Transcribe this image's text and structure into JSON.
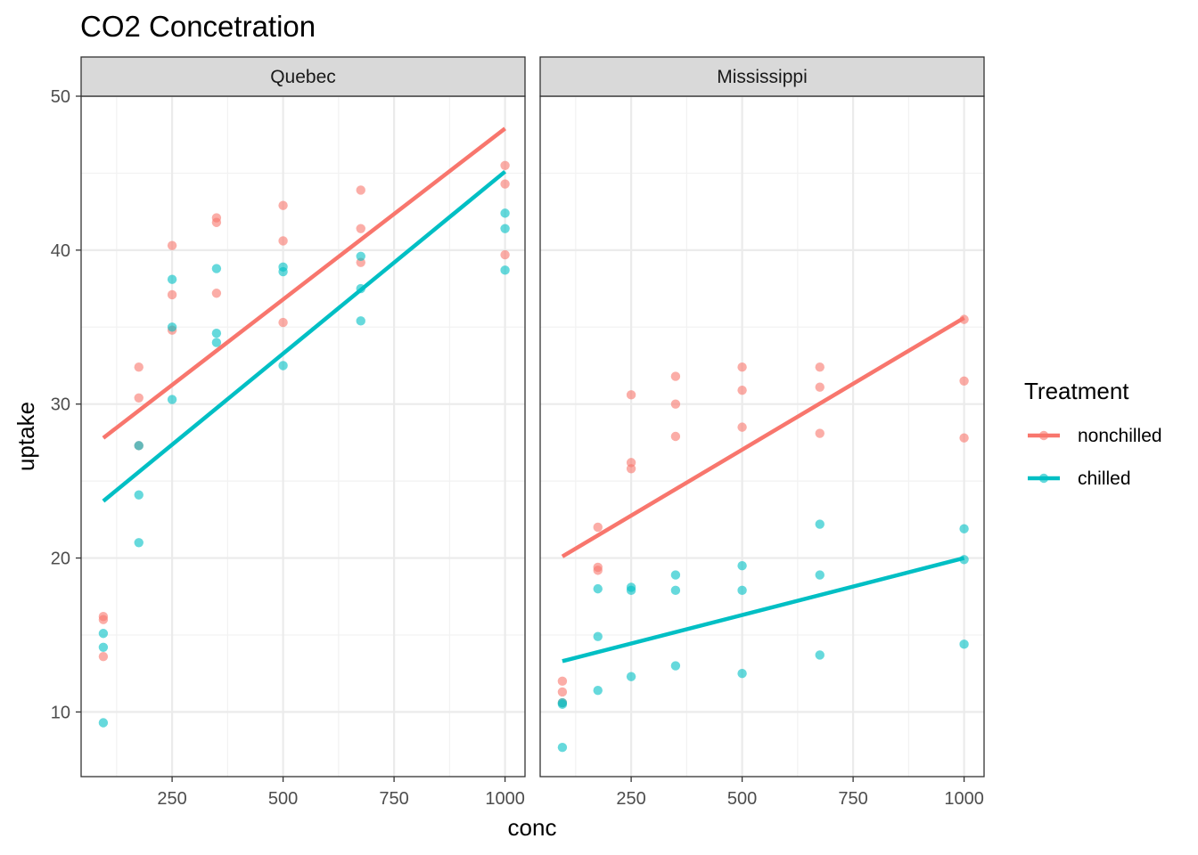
{
  "chart_data": {
    "type": "scatter",
    "title": "CO2 Concetration",
    "xlabel": "conc",
    "ylabel": "uptake",
    "xlim": [
      45,
      1045
    ],
    "ylim": [
      5.8,
      50
    ],
    "x_ticks": [
      250,
      500,
      750,
      1000
    ],
    "y_ticks": [
      10,
      20,
      30,
      40,
      50
    ],
    "grid": true,
    "legend": {
      "title": "Treatment",
      "position": "right",
      "entries": [
        {
          "label": "nonchilled",
          "color": "#F8766D"
        },
        {
          "label": "chilled",
          "color": "#00BFC4"
        }
      ]
    },
    "series_colors": {
      "nonchilled": "#F8766D",
      "chilled": "#00BFC4"
    },
    "panels": [
      {
        "label": "Quebec",
        "points": {
          "nonchilled": [
            [
              95,
              16.0
            ],
            [
              95,
              13.6
            ],
            [
              95,
              16.2
            ],
            [
              175,
              30.4
            ],
            [
              175,
              27.3
            ],
            [
              175,
              32.4
            ],
            [
              250,
              34.8
            ],
            [
              250,
              37.1
            ],
            [
              250,
              40.3
            ],
            [
              350,
              37.2
            ],
            [
              350,
              41.8
            ],
            [
              350,
              42.1
            ],
            [
              500,
              35.3
            ],
            [
              500,
              40.6
            ],
            [
              500,
              42.9
            ],
            [
              675,
              39.2
            ],
            [
              675,
              41.4
            ],
            [
              675,
              43.9
            ],
            [
              1000,
              39.7
            ],
            [
              1000,
              44.3
            ],
            [
              1000,
              45.5
            ]
          ],
          "chilled": [
            [
              95,
              14.2
            ],
            [
              95,
              9.3
            ],
            [
              95,
              15.1
            ],
            [
              175,
              24.1
            ],
            [
              175,
              27.3
            ],
            [
              175,
              21.0
            ],
            [
              250,
              30.3
            ],
            [
              250,
              35.0
            ],
            [
              250,
              38.1
            ],
            [
              350,
              34.6
            ],
            [
              350,
              38.8
            ],
            [
              350,
              34.0
            ],
            [
              500,
              32.5
            ],
            [
              500,
              38.6
            ],
            [
              500,
              38.9
            ],
            [
              675,
              35.4
            ],
            [
              675,
              37.5
            ],
            [
              675,
              39.6
            ],
            [
              1000,
              38.7
            ],
            [
              1000,
              42.4
            ],
            [
              1000,
              41.4
            ]
          ]
        },
        "fits": {
          "nonchilled": [
            [
              95,
              27.8
            ],
            [
              1000,
              47.9
            ]
          ],
          "chilled": [
            [
              95,
              23.7
            ],
            [
              1000,
              45.1
            ]
          ]
        }
      },
      {
        "label": "Mississippi",
        "points": {
          "nonchilled": [
            [
              95,
              10.6
            ],
            [
              95,
              12.0
            ],
            [
              95,
              11.3
            ],
            [
              175,
              19.2
            ],
            [
              175,
              22.0
            ],
            [
              175,
              19.4
            ],
            [
              250,
              26.2
            ],
            [
              250,
              30.6
            ],
            [
              250,
              25.8
            ],
            [
              350,
              30.0
            ],
            [
              350,
              31.8
            ],
            [
              350,
              27.9
            ],
            [
              500,
              30.9
            ],
            [
              500,
              32.4
            ],
            [
              500,
              28.5
            ],
            [
              675,
              32.4
            ],
            [
              675,
              31.1
            ],
            [
              675,
              28.1
            ],
            [
              1000,
              35.5
            ],
            [
              1000,
              31.5
            ],
            [
              1000,
              27.8
            ]
          ],
          "chilled": [
            [
              95,
              10.5
            ],
            [
              95,
              7.7
            ],
            [
              95,
              10.6
            ],
            [
              175,
              14.9
            ],
            [
              175,
              11.4
            ],
            [
              175,
              18.0
            ],
            [
              250,
              18.1
            ],
            [
              250,
              12.3
            ],
            [
              250,
              17.9
            ],
            [
              350,
              18.9
            ],
            [
              350,
              13.0
            ],
            [
              350,
              17.9
            ],
            [
              500,
              19.5
            ],
            [
              500,
              12.5
            ],
            [
              500,
              17.9
            ],
            [
              675,
              22.2
            ],
            [
              675,
              13.7
            ],
            [
              675,
              18.9
            ],
            [
              1000,
              21.9
            ],
            [
              1000,
              14.4
            ],
            [
              1000,
              19.9
            ]
          ]
        },
        "fits": {
          "nonchilled": [
            [
              95,
              20.1
            ],
            [
              1000,
              35.6
            ]
          ],
          "chilled": [
            [
              95,
              13.3
            ],
            [
              1000,
              20.0
            ]
          ]
        }
      }
    ]
  }
}
